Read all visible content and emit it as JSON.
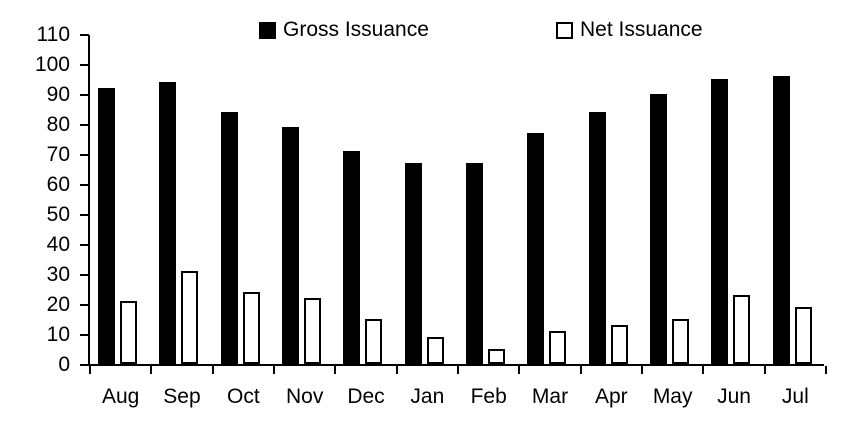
{
  "chart_data": {
    "type": "bar",
    "title": "",
    "xlabel": "",
    "ylabel": "",
    "categories": [
      "Aug",
      "Sep",
      "Oct",
      "Nov",
      "Dec",
      "Jan",
      "Feb",
      "Mar",
      "Apr",
      "May",
      "Jun",
      "Jul"
    ],
    "series": [
      {
        "name": "Gross Issuance",
        "style": "filled-black",
        "values": [
          92,
          94,
          84,
          79,
          71,
          67,
          67,
          77,
          84,
          90,
          95,
          96
        ]
      },
      {
        "name": "Net Issuance",
        "style": "outlined-white",
        "values": [
          21,
          31,
          24,
          22,
          15,
          9,
          5,
          11,
          13,
          15,
          23,
          19
        ]
      }
    ],
    "ylim": [
      0,
      110
    ],
    "yticks": [
      0,
      10,
      20,
      30,
      40,
      50,
      60,
      70,
      80,
      90,
      100,
      110
    ],
    "grid": false,
    "legend_position": "top"
  },
  "legend": {
    "gross_label": "Gross Issuance",
    "net_label": "Net Issuance"
  },
  "colors": {
    "gross_fill": "#000000",
    "net_fill": "#ffffff",
    "net_border": "#000000",
    "axis": "#000000",
    "text": "#000000",
    "background": "#ffffff"
  }
}
